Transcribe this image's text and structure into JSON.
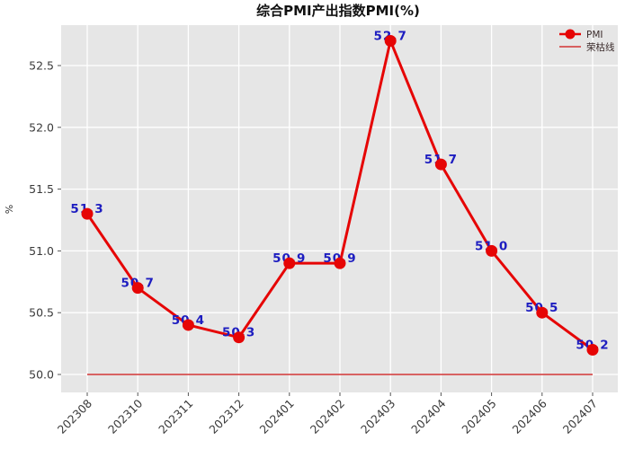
{
  "chart_data": {
    "type": "line",
    "title": "综合PMI产出指数PMI(%)",
    "xlabel": "",
    "ylabel": "%",
    "categories": [
      "202308",
      "202310",
      "202311",
      "202312",
      "202401",
      "202402",
      "202403",
      "202404",
      "202405",
      "202406",
      "202407"
    ],
    "series": [
      {
        "name": "PMI",
        "values": [
          51.3,
          50.7,
          50.4,
          50.3,
          50.9,
          50.9,
          52.7,
          51.7,
          51.0,
          50.5,
          50.2
        ]
      }
    ],
    "reference_line": {
      "name": "荣枯线",
      "value": 50.0
    },
    "ylim": [
      49.85,
      52.85
    ],
    "yticks": [
      50.0,
      50.5,
      51.0,
      51.5,
      52.0,
      52.5
    ],
    "grid": true,
    "legend": {
      "position": "upper right",
      "entries": [
        "PMI",
        "荣枯线"
      ]
    },
    "colors": {
      "line": "#e60505",
      "marker": "#e60505",
      "reference": "#d23434",
      "label": "#1d1dc0",
      "plot_bg": "#e6e6e6",
      "grid": "#ffffff",
      "tick": "#555555"
    }
  }
}
